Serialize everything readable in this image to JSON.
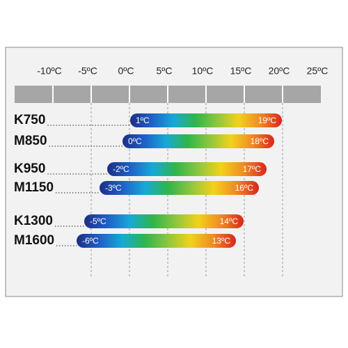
{
  "chart_data": {
    "type": "range_bar",
    "categories": [
      "K750",
      "M850",
      "K950",
      "M1150",
      "K1300",
      "M1600"
    ],
    "values": [
      [
        1,
        19
      ],
      [
        0,
        18
      ],
      [
        -2,
        17
      ],
      [
        -3,
        16
      ],
      [
        -5,
        14
      ],
      [
        -6,
        13
      ]
    ],
    "value_labels": [
      [
        "1ºC",
        "19ºC"
      ],
      [
        "0ºC",
        "18ºC"
      ],
      [
        "-2ºC",
        "17ºC"
      ],
      [
        "-3ºC",
        "16ºC"
      ],
      [
        "-5ºC",
        "14ºC"
      ],
      [
        "-6ºC",
        "13ºC"
      ]
    ],
    "xlim": [
      -15,
      25
    ],
    "xticks": [
      {
        "value": -10,
        "label": "-10ºC"
      },
      {
        "value": -5,
        "label": "-5ºC"
      },
      {
        "value": 0,
        "label": "0ºC"
      },
      {
        "value": 5,
        "label": "5ºC"
      },
      {
        "value": 10,
        "label": "10ºC"
      },
      {
        "value": 15,
        "label": "15ºC"
      },
      {
        "value": 20,
        "label": "20ºC"
      },
      {
        "value": 25,
        "label": "25ºC"
      }
    ],
    "grid": true,
    "colors": [
      "#1c2f86",
      "#1f5fc8",
      "#16a9d8",
      "#2fb54a",
      "#8cc63f",
      "#f2d21b",
      "#f08a24",
      "#d9261c"
    ]
  }
}
